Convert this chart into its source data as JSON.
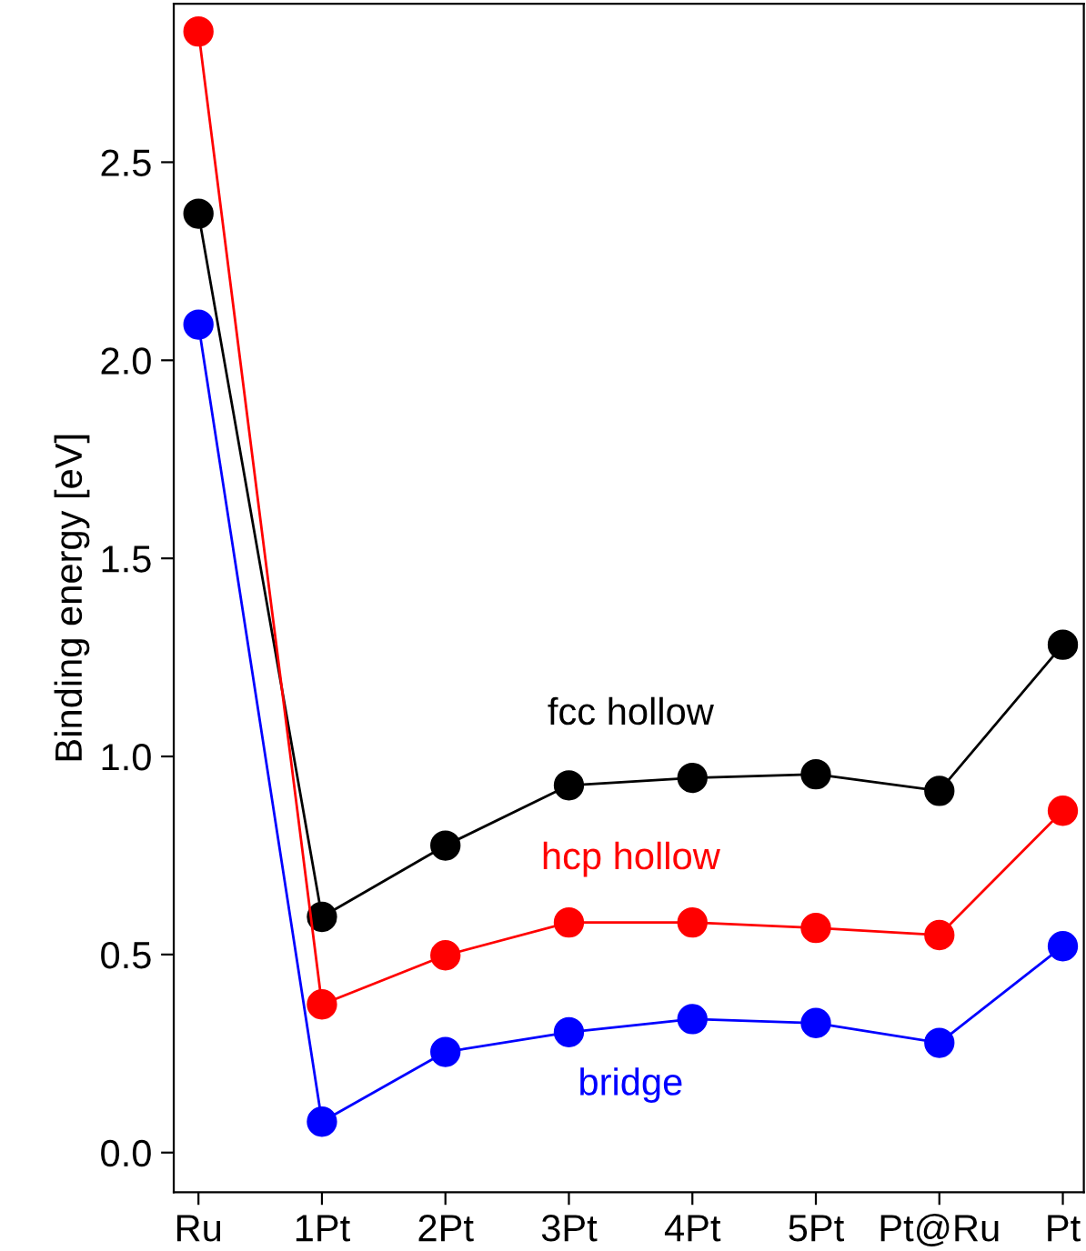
{
  "chart_data": {
    "type": "line",
    "ylabel": "Binding energy [eV]",
    "categories": [
      "Ru",
      "1Pt",
      "2Pt",
      "3Pt",
      "4Pt",
      "5Pt",
      "Pt@Ru",
      "Pt"
    ],
    "series": [
      {
        "name": "fcc hollow",
        "color": "#000000",
        "values": [
          2.37,
          0.595,
          0.775,
          0.927,
          0.946,
          0.955,
          0.913,
          1.282
        ]
      },
      {
        "name": "hcp hollow",
        "color": "#ff0000",
        "values": [
          2.83,
          0.374,
          0.498,
          0.581,
          0.581,
          0.567,
          0.549,
          0.863
        ]
      },
      {
        "name": "bridge",
        "color": "#0000ff",
        "values": [
          2.09,
          0.078,
          0.254,
          0.304,
          0.337,
          0.327,
          0.277,
          0.521
        ]
      }
    ],
    "ylim": [
      -0.1,
      2.9
    ],
    "yticks": [
      {
        "value": 0,
        "label": "0.0"
      },
      0.5,
      {
        "value": 1,
        "label": "1.0"
      },
      1.5,
      {
        "value": 2,
        "label": "2.0"
      },
      2.5
    ],
    "grid": false,
    "legend": false,
    "marker": "circle",
    "line_style": "solid"
  }
}
